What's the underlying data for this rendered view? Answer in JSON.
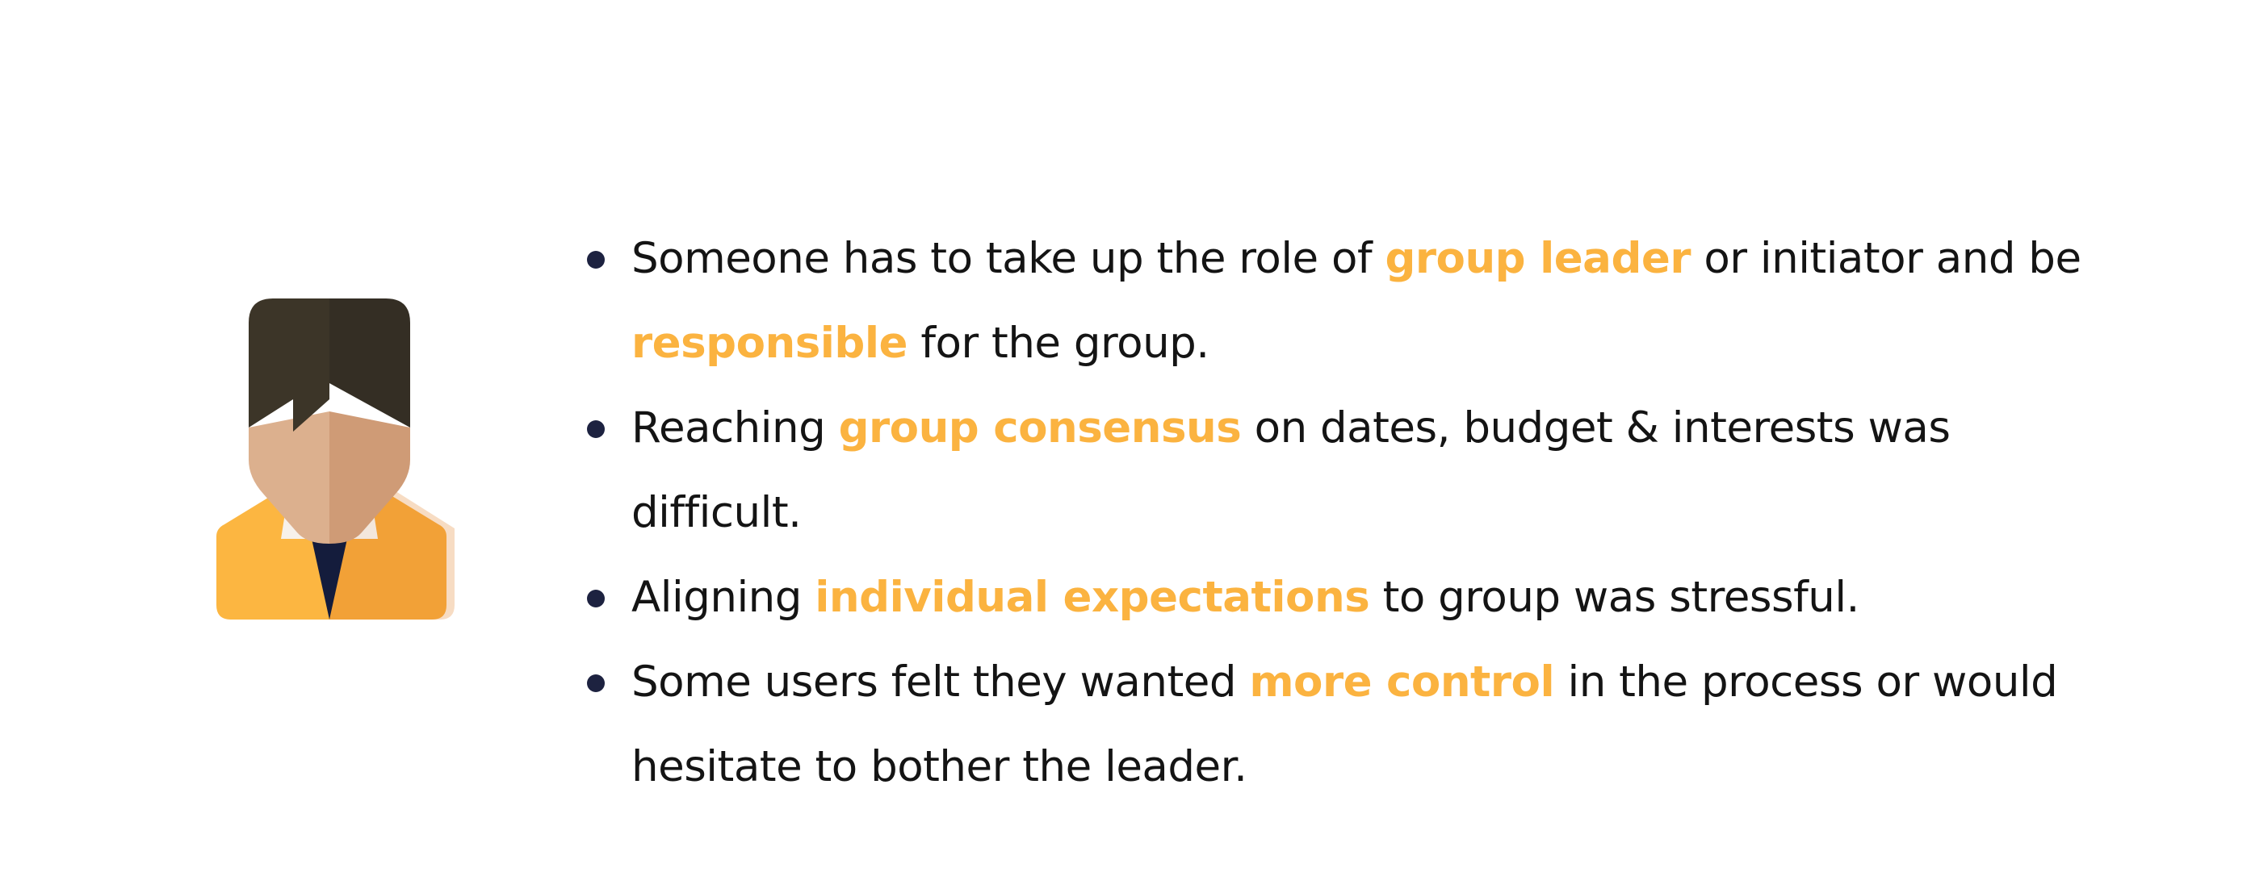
{
  "colors": {
    "highlight": "#fbb340",
    "text": "#141414",
    "bullet": "#1d2240",
    "hair": "#3c3528",
    "skin_light": "#dcb08e",
    "skin_dark": "#cf9b76",
    "jacket_light": "#fcb641",
    "jacket_dark": "#f2a137",
    "tie": "#141c3c"
  },
  "avatar": {
    "icon": "person-avatar-icon"
  },
  "bullets": [
    {
      "before": "Someone has to take up the role of ",
      "highlight_1": "group leader",
      "middle": " or initiator and be ",
      "highlight_2": "responsible",
      "after": " for the group."
    },
    {
      "before": "Reaching ",
      "highlight": "group consensus",
      "after": " on dates, budget & interests was difficult."
    },
    {
      "before": "Aligning ",
      "highlight": "individual expectations",
      "after": " to group was stressful."
    },
    {
      "before": "Some users felt they wanted ",
      "highlight": "more control",
      "after": " in the process or would hesitate to bother the leader."
    }
  ]
}
